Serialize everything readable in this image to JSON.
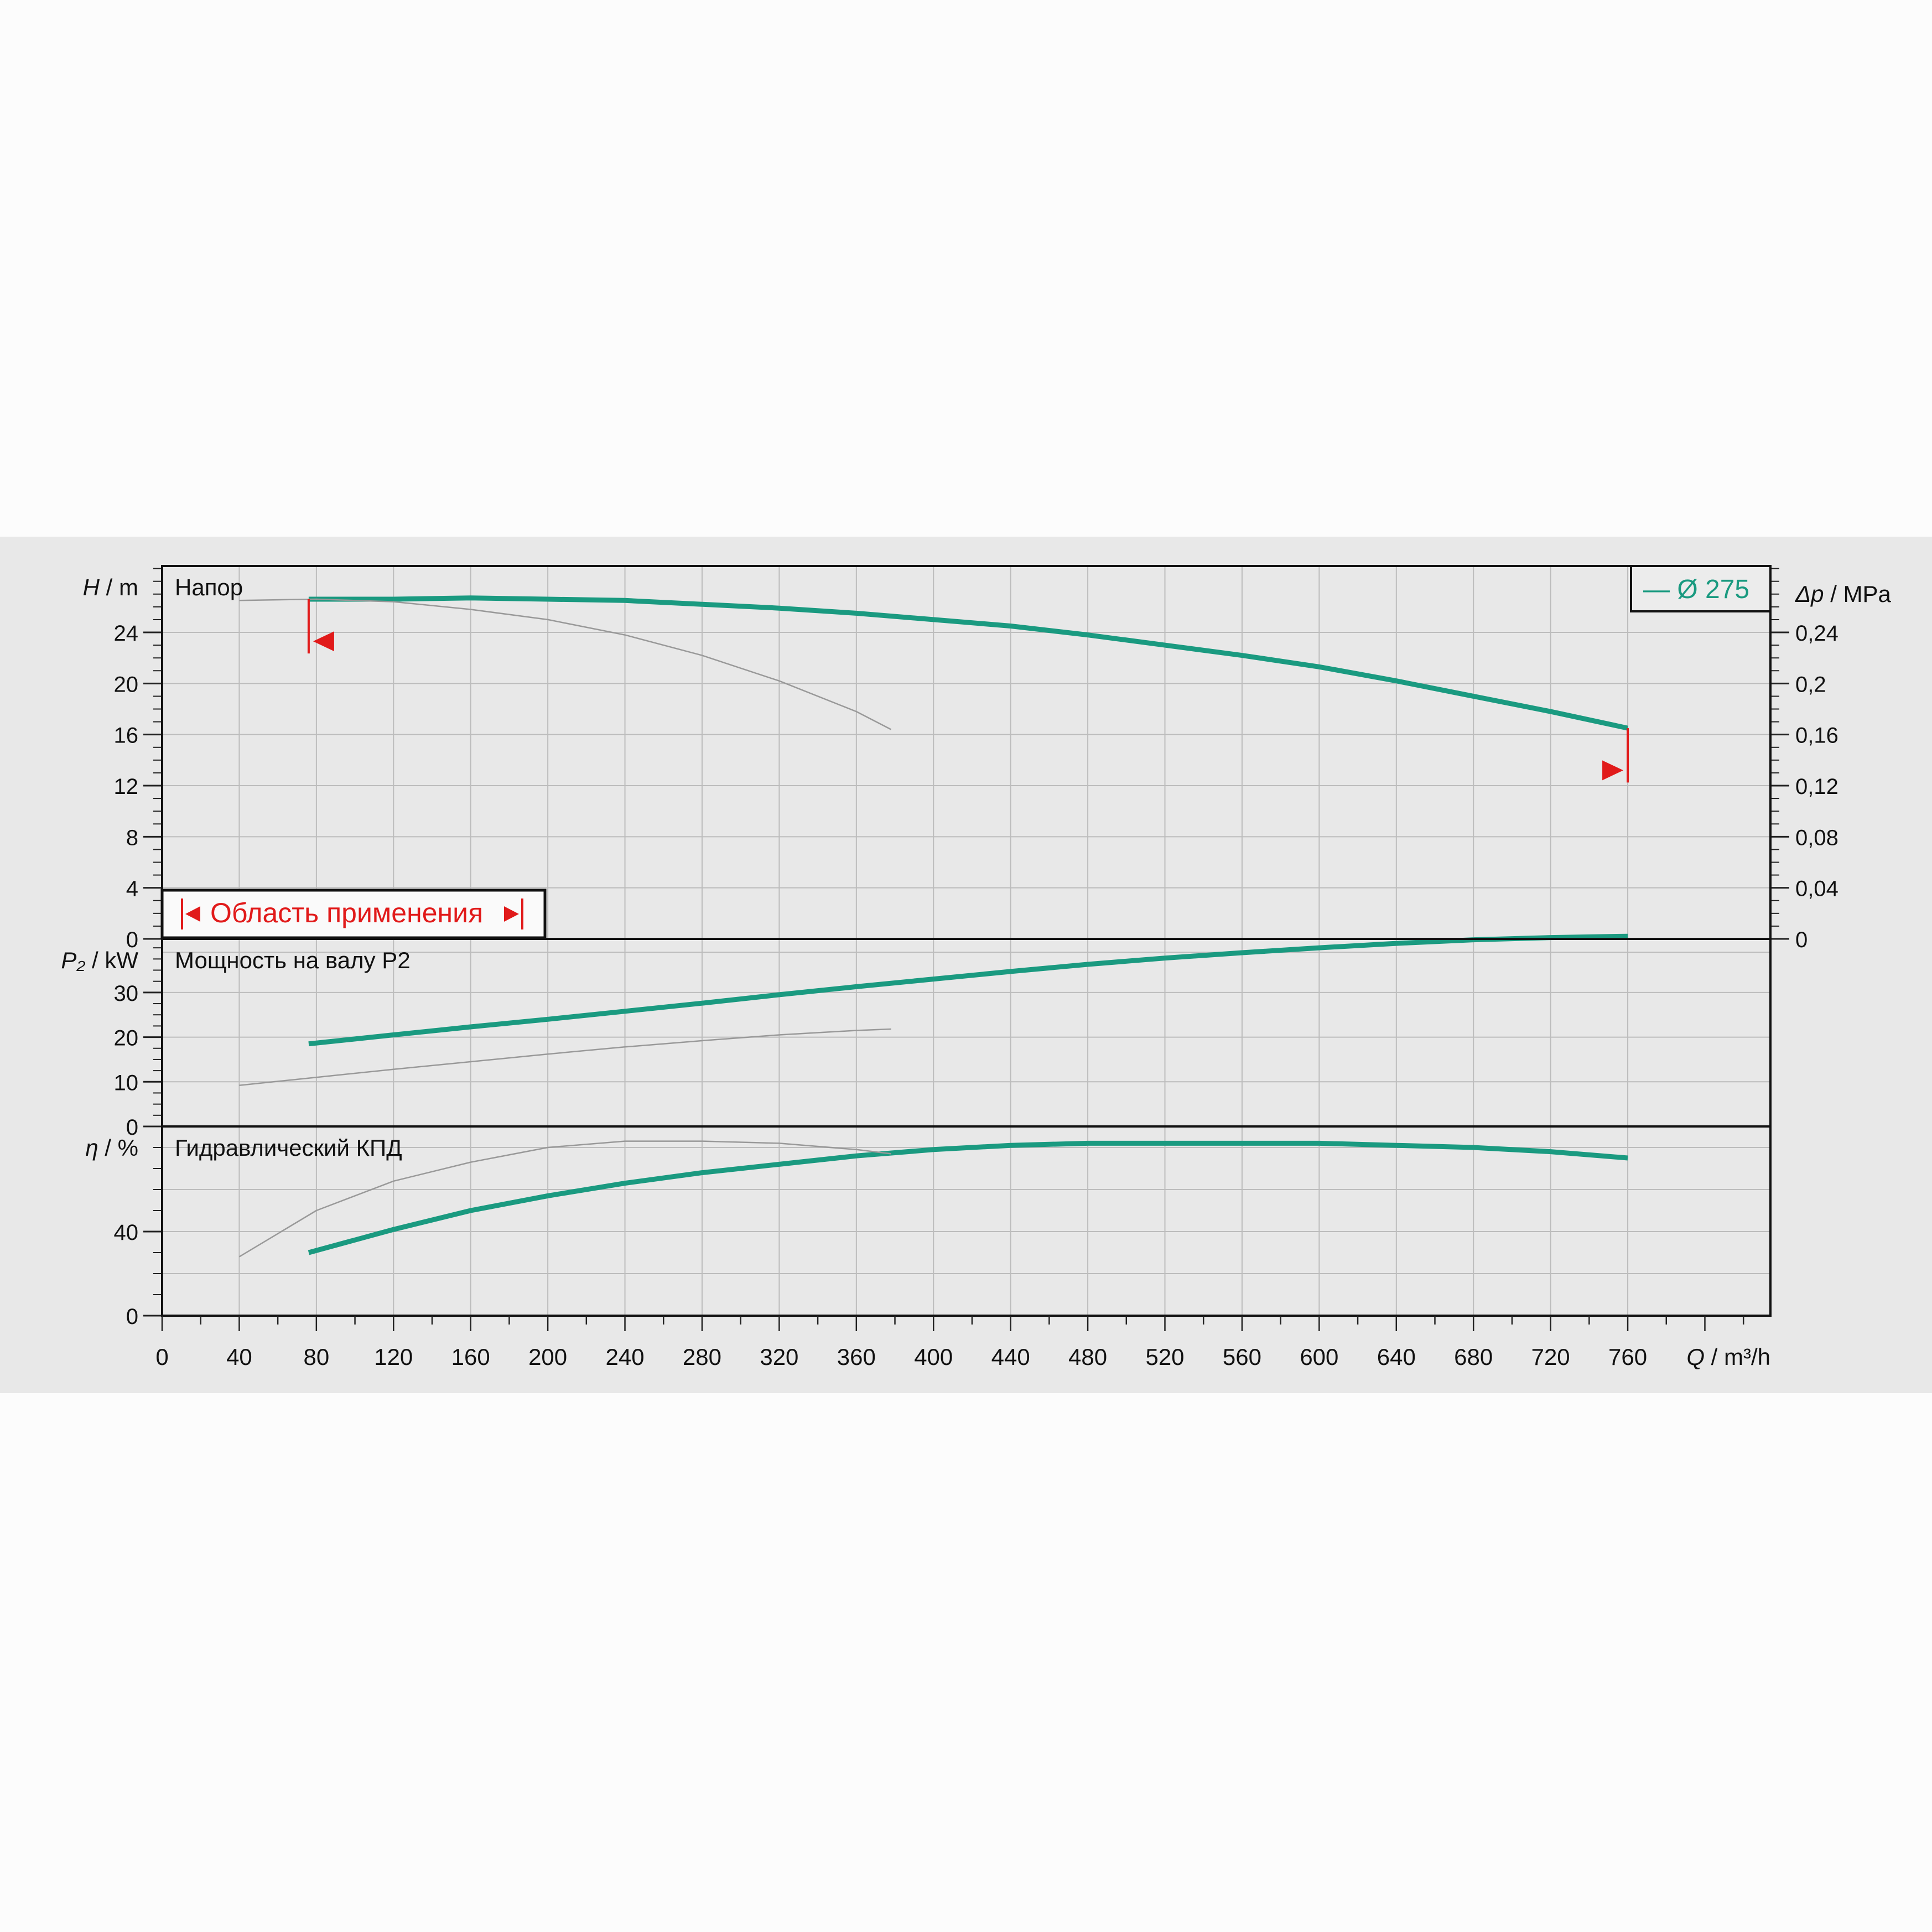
{
  "chart_data": {
    "type": "line",
    "x_axis": {
      "label_var": "Q",
      "label_unit": " / m³/h",
      "range": [
        0,
        834
      ],
      "ticks": [
        "0",
        "40",
        "80",
        "120",
        "160",
        "200",
        "240",
        "280",
        "320",
        "360",
        "400",
        "440",
        "480",
        "520",
        "560",
        "600",
        "640",
        "680",
        "720",
        "760"
      ],
      "tick_values": [
        0,
        40,
        80,
        120,
        160,
        200,
        240,
        280,
        320,
        360,
        400,
        440,
        480,
        520,
        560,
        600,
        640,
        680,
        720,
        760
      ]
    },
    "legend": {
      "label": "— Ø 275",
      "placement": "top-right",
      "color": "#1a9a80"
    },
    "colors": {
      "curve": "#1a9a80",
      "thin": "#999999",
      "limit": "#e11a1a",
      "grid": "#bcbcbc"
    },
    "application_area": {
      "label": "Область применения",
      "q_min": 76,
      "q_max": 760,
      "left_marker_h": 23.3,
      "right_marker_h": 13.2
    },
    "panels": [
      {
        "id": "head",
        "title": "Напор",
        "ylabel_var": "H",
        "ylabel_unit": " / m",
        "ylim": [
          0,
          29.2
        ],
        "yticks": [
          "0",
          "4",
          "8",
          "12",
          "16",
          "20",
          "24"
        ],
        "ytick_values": [
          0,
          4,
          8,
          12,
          16,
          20,
          24
        ],
        "y2label_var": "Δp",
        "y2label_unit": " / MPa",
        "y2lim": [
          0,
          0.292
        ],
        "y2ticks": [
          "0",
          "0,04",
          "0,08",
          "0,12",
          "0,16",
          "0,2",
          "0,24"
        ],
        "y2tick_values": [
          0,
          0.04,
          0.08,
          0.12,
          0.16,
          0.2,
          0.24
        ],
        "series": [
          {
            "name": "Ø 275",
            "x": [
              76,
              120,
              160,
              200,
              240,
              280,
              320,
              360,
              400,
              440,
              480,
              520,
              560,
              600,
              640,
              680,
              720,
              760
            ],
            "y": [
              26.6,
              26.6,
              26.7,
              26.6,
              26.5,
              26.2,
              25.9,
              25.5,
              25.0,
              24.5,
              23.8,
              23.0,
              22.2,
              21.3,
              20.2,
              19.0,
              17.8,
              16.5
            ]
          },
          {
            "x": [
              40,
              80,
              120,
              160,
              200,
              240,
              280,
              320,
              360,
              378
            ],
            "y": [
              26.5,
              26.6,
              26.4,
              25.8,
              25.0,
              23.8,
              22.2,
              20.2,
              17.8,
              16.4
            ]
          }
        ]
      },
      {
        "id": "power",
        "title": "Мощность на валу P2",
        "ylabel_var": "P₂",
        "ylabel_unit": " / kW",
        "ylim": [
          0,
          42
        ],
        "yticks": [
          "0",
          "10",
          "20",
          "30"
        ],
        "ytick_values": [
          0,
          10,
          20,
          30
        ],
        "series": [
          {
            "name": "Ø 275",
            "x": [
              76,
              120,
              160,
              200,
              240,
              280,
              320,
              360,
              400,
              440,
              480,
              520,
              560,
              600,
              640,
              680,
              720,
              760
            ],
            "y": [
              18.5,
              20.5,
              22.3,
              24.0,
              25.8,
              27.6,
              29.5,
              31.3,
              33.0,
              34.7,
              36.3,
              37.7,
              38.9,
              40.0,
              41.0,
              41.8,
              42.3,
              42.6
            ]
          },
          {
            "x": [
              40,
              80,
              120,
              160,
              200,
              240,
              280,
              320,
              360,
              378
            ],
            "y": [
              9.2,
              11.0,
              12.8,
              14.5,
              16.2,
              17.8,
              19.2,
              20.5,
              21.5,
              21.8
            ]
          }
        ]
      },
      {
        "id": "efficiency",
        "title": "Гидравлический КПД",
        "ylabel_var": "η",
        "ylabel_unit": " / %",
        "ylim": [
          0,
          90
        ],
        "yticks": [
          "0",
          "40"
        ],
        "ytick_values": [
          0,
          40
        ],
        "series": [
          {
            "name": "Ø 275",
            "x": [
              76,
              120,
              160,
              200,
              240,
              280,
              320,
              360,
              400,
              440,
              480,
              520,
              560,
              600,
              640,
              680,
              720,
              760
            ],
            "y": [
              30,
              41,
              50,
              57,
              63,
              68,
              72,
              76,
              79,
              81,
              82,
              82,
              82,
              82,
              81,
              80,
              78,
              75
            ]
          },
          {
            "x": [
              40,
              80,
              120,
              160,
              200,
              240,
              280,
              320,
              360,
              378
            ],
            "y": [
              28,
              50,
              64,
              73,
              80,
              83,
              83,
              82,
              79,
              77
            ]
          }
        ]
      }
    ]
  }
}
